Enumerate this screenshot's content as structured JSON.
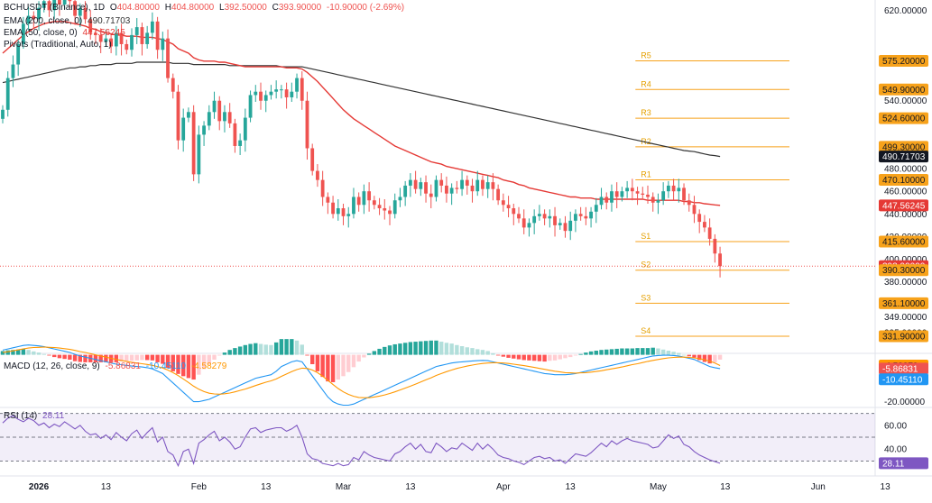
{
  "header": {
    "symbol": "BCHUSDT (Binance), 1D",
    "o_label": "O",
    "o": "404.80000",
    "h_label": "H",
    "h": "404.80000",
    "l_label": "L",
    "l": "392.50000",
    "c_label": "C",
    "c": "393.90000",
    "change": "-10.90000 (-2.69%)"
  },
  "indicators": {
    "ema200_label": "EMA (200, close, 0)",
    "ema200_value": "490.71703",
    "ema50_label": "EMA (50, close, 0)",
    "ema50_value": "447.56245",
    "pivots_label": "Pivots (Traditional, Auto, 1)",
    "macd_label": "MACD (12, 26, close, 9)",
    "macd_values": [
      "-5.86831",
      "-10.45110",
      "-4.58279"
    ],
    "rsi_label": "RSI (14)",
    "rsi_value": "28.11"
  },
  "colors": {
    "up": "#26a69a",
    "down": "#ef5350",
    "ema50": "#e53935",
    "ema200": "#333333",
    "pivot": "#f7a21b",
    "macd": "#2196f3",
    "signal": "#ff9800",
    "rsi": "#7e57c2"
  },
  "price_axis": {
    "ticks": [
      "620.00000",
      "540.00000",
      "480.00000",
      "460.00000",
      "440.00000",
      "420.00000",
      "400.00000",
      "380.00000",
      "361.10000",
      "349.00000",
      "335.00000"
    ],
    "tick_values": [
      620,
      540,
      480,
      460,
      440,
      420,
      400,
      380,
      361.1,
      349,
      335
    ]
  },
  "price_tags": [
    {
      "label": "575.20000",
      "value": 575.2,
      "bg": "#f7a21b",
      "fg": "#131722"
    },
    {
      "label": "549.90000",
      "value": 549.9,
      "bg": "#f7a21b",
      "fg": "#131722"
    },
    {
      "label": "524.60000",
      "value": 524.6,
      "bg": "#f7a21b",
      "fg": "#131722"
    },
    {
      "label": "499.30000",
      "value": 499.3,
      "bg": "#f7a21b",
      "fg": "#131722"
    },
    {
      "label": "490.71703",
      "value": 490.71703,
      "bg": "#131722",
      "fg": "#ffffff"
    },
    {
      "label": "470.10000",
      "value": 470.1,
      "bg": "#f7a21b",
      "fg": "#131722"
    },
    {
      "label": "447.56245",
      "value": 447.56245,
      "bg": "#e53935",
      "fg": "#ffffff"
    },
    {
      "label": "415.60000",
      "value": 415.6,
      "bg": "#f7a21b",
      "fg": "#131722"
    },
    {
      "label": "393.90000",
      "value": 393.9,
      "bg": "#e53935",
      "fg": "#ffffff"
    },
    {
      "label": "390.30000",
      "value": 390.3,
      "bg": "#f7a21b",
      "fg": "#131722"
    },
    {
      "label": "361.10000",
      "value": 361.1,
      "bg": "#f7a21b",
      "fg": "#131722"
    },
    {
      "label": "331.90000",
      "value": 331.9,
      "bg": "#f7a21b",
      "fg": "#131722"
    }
  ],
  "macd_axis": {
    "ticks": [
      "-20.00000"
    ],
    "tick_values": [
      -20
    ]
  },
  "macd_tags": [
    {
      "label": "-4.58279",
      "value": -4.58279,
      "bg": "#ff9800",
      "fg": "#131722"
    },
    {
      "label": "-5.86831",
      "value": -5.86831,
      "bg": "#ef5350",
      "fg": "#ffffff"
    },
    {
      "label": "-10.45110",
      "value": -10.4511,
      "bg": "#2196f3",
      "fg": "#ffffff"
    }
  ],
  "rsi_axis": {
    "ticks": [
      "60.00",
      "40.00"
    ],
    "tick_values": [
      60,
      40
    ]
  },
  "rsi_tag": {
    "label": "28.11",
    "value": 28.11
  },
  "time_axis": {
    "labels": [
      "2026",
      "13",
      "Feb",
      "13",
      "Mar",
      "13",
      "Apr",
      "13",
      "May",
      "13",
      "Jun",
      "13"
    ],
    "bar_index": [
      7,
      20,
      38,
      51,
      66,
      79,
      97,
      110,
      127,
      140,
      158,
      171
    ]
  },
  "chart_data": {
    "type": "candlestick",
    "panes": [
      "price",
      "macd",
      "rsi"
    ],
    "price_range": [
      320,
      625
    ],
    "macd_range": [
      -24,
      6
    ],
    "rsi_range": [
      22,
      72
    ],
    "rsi_levels": [
      70,
      50,
      30
    ],
    "pivots": [
      {
        "name": "R5",
        "value": 575.2
      },
      {
        "name": "R4",
        "value": 549.9
      },
      {
        "name": "R3",
        "value": 524.6
      },
      {
        "name": "R2",
        "value": 499.3
      },
      {
        "name": "R1",
        "value": 470.1
      },
      {
        "name": "S1",
        "value": 415.6
      },
      {
        "name": "S2",
        "value": 390.3
      },
      {
        "name": "S3",
        "value": 361.1
      },
      {
        "name": "S4",
        "value": 331.9
      }
    ],
    "pivot_start_bar": 124,
    "candles_close": [
      532,
      560,
      572,
      590,
      608,
      615,
      612,
      622,
      628,
      620,
      635,
      625,
      640,
      628,
      615,
      622,
      612,
      600,
      598,
      592,
      595,
      588,
      600,
      590,
      585,
      598,
      605,
      590,
      600,
      610,
      585,
      595,
      560,
      548,
      505,
      525,
      530,
      475,
      510,
      518,
      530,
      540,
      522,
      530,
      520,
      500,
      505,
      525,
      545,
      548,
      540,
      545,
      548,
      550,
      550,
      543,
      548,
      560,
      540,
      498,
      478,
      470,
      455,
      450,
      440,
      445,
      438,
      440,
      455,
      448,
      460,
      452,
      448,
      445,
      443,
      440,
      452,
      455,
      465,
      470,
      462,
      468,
      458,
      455,
      470,
      465,
      458,
      463,
      462,
      470,
      465,
      460,
      470,
      462,
      468,
      462,
      452,
      448,
      445,
      440,
      436,
      428,
      432,
      438,
      440,
      436,
      438,
      430,
      432,
      425,
      434,
      440,
      438,
      436,
      442,
      448,
      455,
      450,
      460,
      455,
      460,
      463,
      460,
      458,
      457,
      455,
      450,
      452,
      460,
      465,
      460,
      463,
      452,
      448,
      440,
      433,
      428,
      418,
      405,
      393.9
    ],
    "ema50": [
      582,
      586,
      590,
      594,
      598,
      601,
      604,
      606,
      608,
      609,
      610,
      610,
      610,
      609,
      608,
      607,
      606,
      604,
      603,
      601,
      600,
      599,
      598,
      598,
      597,
      597,
      597,
      596,
      596,
      596,
      595,
      594,
      592,
      590,
      586,
      584,
      582,
      578,
      576,
      575,
      575,
      575,
      574,
      574,
      573,
      572,
      571,
      570,
      570,
      570,
      570,
      570,
      570,
      570,
      570,
      569,
      569,
      569,
      568,
      565,
      561,
      557,
      552,
      547,
      542,
      537,
      532,
      528,
      524,
      521,
      518,
      515,
      512,
      509,
      506,
      503,
      500,
      498,
      496,
      494,
      492,
      490,
      488,
      486,
      485,
      484,
      482,
      481,
      480,
      479,
      478,
      477,
      476,
      475,
      474,
      473,
      472,
      470,
      469,
      468,
      466,
      465,
      463,
      462,
      461,
      460,
      459,
      458,
      457,
      456,
      455,
      455,
      454,
      454,
      454,
      453,
      453,
      453,
      453,
      453,
      453,
      453,
      453,
      453,
      453,
      452,
      452,
      452,
      452,
      452,
      452,
      452,
      451,
      451,
      450,
      450,
      449,
      448.5,
      448,
      447.56
    ],
    "ema200": [
      556,
      557,
      558,
      559,
      560,
      561,
      562,
      563,
      564,
      565,
      566,
      567,
      568,
      569,
      569,
      570,
      570,
      571,
      571,
      572,
      572,
      572,
      573,
      573,
      573,
      573,
      574,
      574,
      574,
      574,
      574,
      574,
      574,
      573,
      573,
      573,
      573,
      572,
      572,
      572,
      572,
      572,
      572,
      572,
      571,
      571,
      571,
      571,
      571,
      571,
      571,
      571,
      571,
      571,
      570,
      570,
      570,
      570,
      570,
      569,
      568,
      567,
      566,
      565,
      564,
      563,
      562,
      561,
      560,
      559,
      558,
      557,
      556,
      555,
      554,
      553,
      552,
      551,
      550,
      549,
      548,
      547,
      546,
      545,
      544,
      543,
      542,
      541,
      540,
      539,
      538,
      537,
      536,
      535,
      534,
      533,
      532,
      531,
      530,
      529,
      528,
      527,
      526,
      525,
      524,
      523,
      522,
      521,
      520,
      519,
      518,
      517,
      516,
      515,
      514,
      513,
      512,
      511,
      510,
      509,
      508,
      507,
      506,
      505,
      504,
      503,
      502,
      501,
      500,
      499,
      498,
      497,
      496,
      495.5,
      495,
      494,
      493,
      492,
      491.5,
      490.72
    ],
    "macd": [
      2,
      2.5,
      3,
      3.5,
      4,
      4.2,
      4.0,
      3.8,
      3.5,
      3.0,
      2.5,
      2.0,
      1.5,
      1.0,
      0.2,
      -0.5,
      -1.0,
      -1.5,
      -2.0,
      -2.5,
      -3,
      -3.5,
      -4,
      -4.2,
      -4.5,
      -4.8,
      -5,
      -5.2,
      -5.5,
      -6,
      -7,
      -8,
      -10,
      -12,
      -14,
      -16,
      -18,
      -20,
      -20,
      -19.5,
      -19,
      -18,
      -17,
      -16,
      -15,
      -14,
      -13,
      -12,
      -11,
      -10,
      -9.5,
      -9,
      -8.5,
      -7,
      -5,
      -4,
      -3,
      -2.5,
      -3,
      -6,
      -9,
      -12,
      -15,
      -18,
      -20,
      -21,
      -21.5,
      -21.5,
      -21,
      -20,
      -19,
      -18,
      -17,
      -16,
      -15,
      -14,
      -13,
      -12,
      -11,
      -10,
      -9,
      -8,
      -7,
      -6,
      -5,
      -4.5,
      -4,
      -3.5,
      -3.2,
      -3,
      -2.8,
      -2.6,
      -2.5,
      -2.4,
      -2.5,
      -3,
      -3.5,
      -4,
      -4.5,
      -5,
      -5.5,
      -6,
      -6.5,
      -7,
      -7.5,
      -8,
      -8.2,
      -8.5,
      -8.5,
      -8.5,
      -8.3,
      -8,
      -7.5,
      -7,
      -6.5,
      -6,
      -5.5,
      -5,
      -4.5,
      -4,
      -3.5,
      -3,
      -2.5,
      -2,
      -1.5,
      -1,
      -0.5,
      -0.3,
      -0.2,
      -0.2,
      -0.3,
      -0.5,
      -1,
      -1.5,
      -2,
      -3,
      -4,
      -5,
      -5.5,
      -5.87
    ],
    "signal": [
      1,
      1.3,
      1.7,
      2.1,
      2.5,
      2.9,
      3.1,
      3.2,
      3.3,
      3.2,
      3.1,
      2.9,
      2.6,
      2.3,
      1.9,
      1.4,
      1.0,
      0.5,
      0.0,
      -0.5,
      -1,
      -1.5,
      -2,
      -2.4,
      -2.8,
      -3.2,
      -3.5,
      -3.8,
      -4.1,
      -4.5,
      -5,
      -5.6,
      -6.5,
      -7.6,
      -8.9,
      -10.3,
      -11.8,
      -13.4,
      -14.7,
      -15.7,
      -16.4,
      -16.7,
      -16.8,
      -16.6,
      -16.3,
      -15.8,
      -15.2,
      -14.6,
      -13.9,
      -13.1,
      -12.4,
      -11.7,
      -11.1,
      -10.3,
      -9.2,
      -8.2,
      -7.2,
      -6.3,
      -5.7,
      -5.8,
      -6.5,
      -7.6,
      -9.1,
      -10.9,
      -12.7,
      -14.4,
      -15.8,
      -16.9,
      -17.7,
      -18.2,
      -18.3,
      -18.3,
      -18.0,
      -17.6,
      -17.1,
      -16.5,
      -15.8,
      -15.0,
      -14.2,
      -13.4,
      -12.5,
      -11.6,
      -10.7,
      -9.8,
      -8.8,
      -8.0,
      -7.2,
      -6.5,
      -5.8,
      -5.3,
      -4.8,
      -4.4,
      -4.0,
      -3.7,
      -3.5,
      -3.4,
      -3.4,
      -3.5,
      -3.7,
      -4.0,
      -4.3,
      -4.6,
      -5.0,
      -5.4,
      -5.8,
      -6.2,
      -6.6,
      -7.0,
      -7.3,
      -7.6,
      -7.7,
      -7.8,
      -7.7,
      -7.6,
      -7.4,
      -7.1,
      -6.8,
      -6.4,
      -6.0,
      -5.6,
      -5.2,
      -4.7,
      -4.2,
      -3.8,
      -3.3,
      -2.8,
      -2.4,
      -2.0,
      -1.6,
      -1.3,
      -1.1,
      -1.0,
      -1.0,
      -1.1,
      -1.3,
      -1.6,
      -2.1,
      -2.7,
      -3.5,
      -4.58
    ],
    "rsi": [
      62,
      66,
      68,
      65,
      63,
      66,
      64,
      60,
      62,
      58,
      61,
      59,
      63,
      60,
      57,
      60,
      55,
      52,
      53,
      49,
      52,
      48,
      54,
      50,
      47,
      53,
      56,
      49,
      54,
      58,
      46,
      50,
      38,
      35,
      26,
      38,
      40,
      28,
      45,
      48,
      52,
      55,
      47,
      50,
      46,
      40,
      42,
      50,
      57,
      58,
      54,
      56,
      57,
      58,
      58,
      55,
      57,
      60,
      50,
      36,
      32,
      31,
      28,
      27,
      26,
      28,
      26,
      27,
      33,
      31,
      38,
      35,
      33,
      32,
      31,
      30,
      36,
      38,
      42,
      45,
      40,
      44,
      38,
      37,
      45,
      42,
      38,
      41,
      40,
      45,
      42,
      39,
      45,
      40,
      44,
      40,
      35,
      33,
      32,
      30,
      29,
      27,
      30,
      33,
      34,
      32,
      33,
      30,
      31,
      28,
      32,
      36,
      35,
      34,
      37,
      41,
      45,
      42,
      47,
      44,
      47,
      49,
      47,
      46,
      45,
      44,
      41,
      42,
      47,
      52,
      49,
      51,
      44,
      42,
      38,
      35,
      33,
      31,
      29.5,
      28.11
    ],
    "xlabel": "",
    "ylabel": ""
  }
}
